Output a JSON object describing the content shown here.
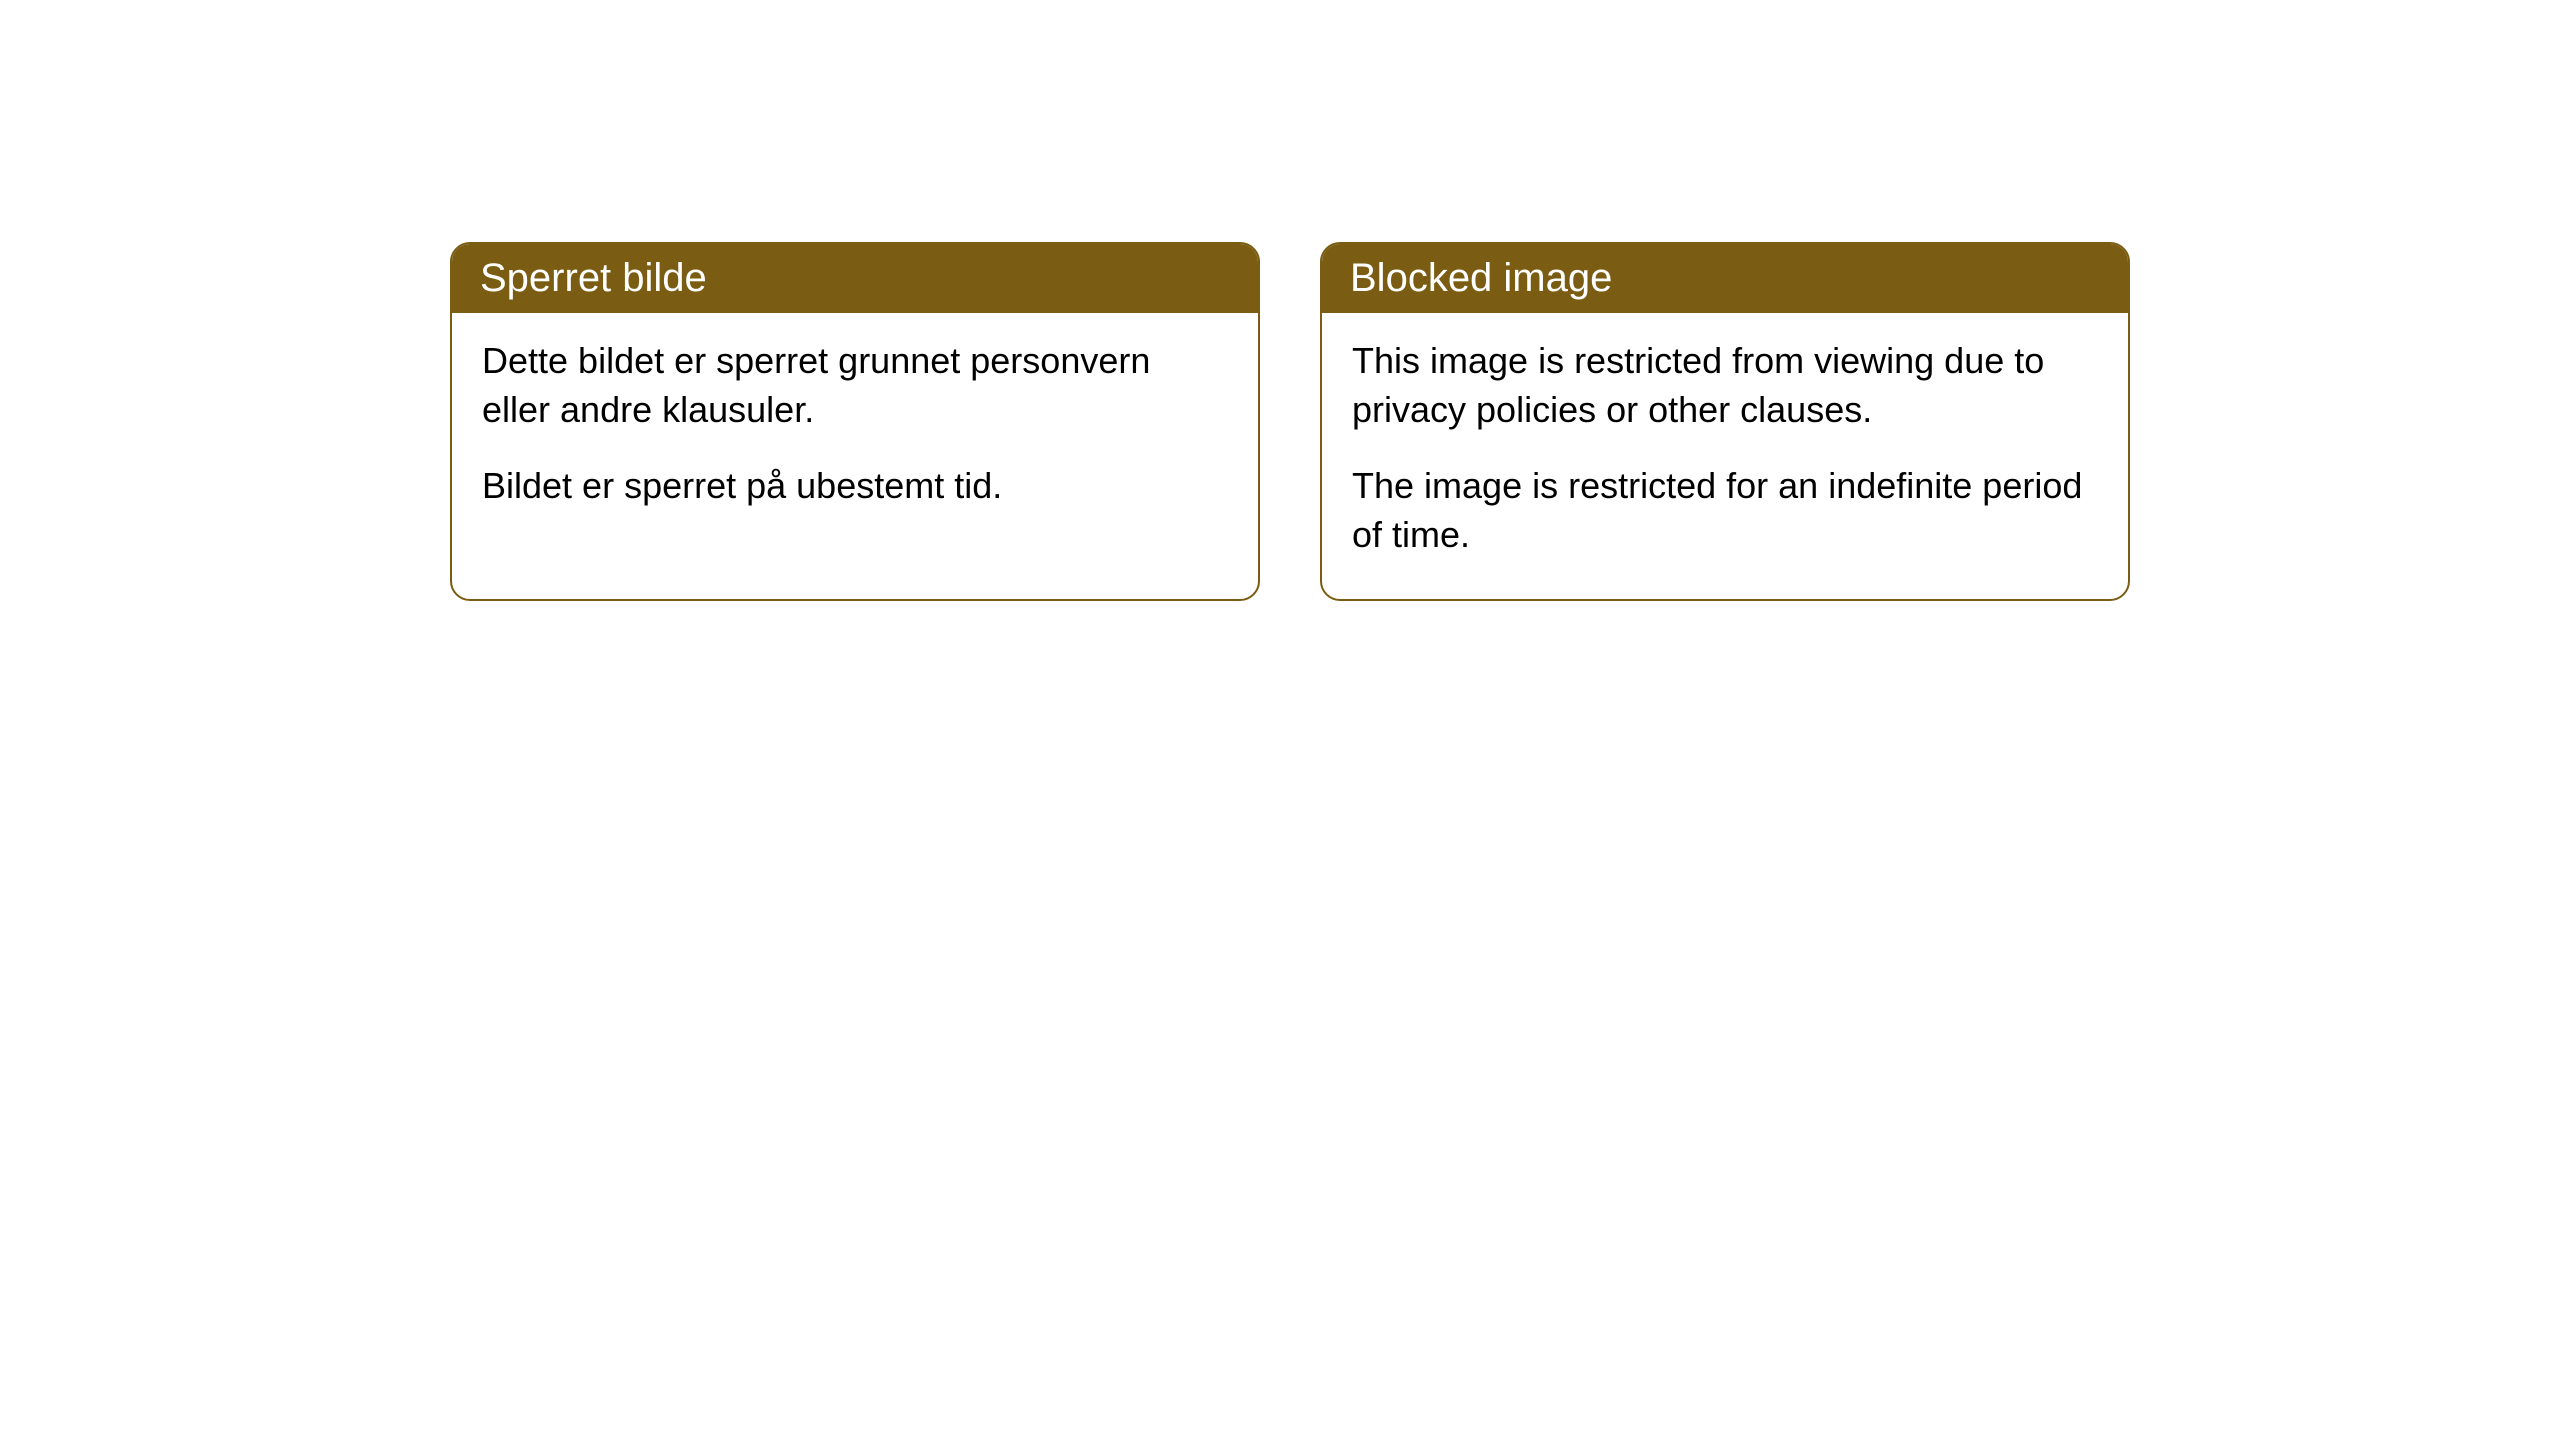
{
  "cards": [
    {
      "title": "Sperret bilde",
      "paragraph1": "Dette bildet er sperret grunnet personvern eller andre klausuler.",
      "paragraph2": "Bildet er sperret på ubestemt tid."
    },
    {
      "title": "Blocked image",
      "paragraph1": "This image is restricted from viewing due to privacy policies or other clauses.",
      "paragraph2": "The image is restricted for an indefinite period of time."
    }
  ],
  "styling": {
    "header_background": "#7a5c12",
    "header_text_color": "#ffffff",
    "border_color": "#7a5c12",
    "body_background": "#ffffff",
    "body_text_color": "#000000",
    "border_radius": "20px",
    "header_fontsize": "40px",
    "body_fontsize": "36px"
  }
}
